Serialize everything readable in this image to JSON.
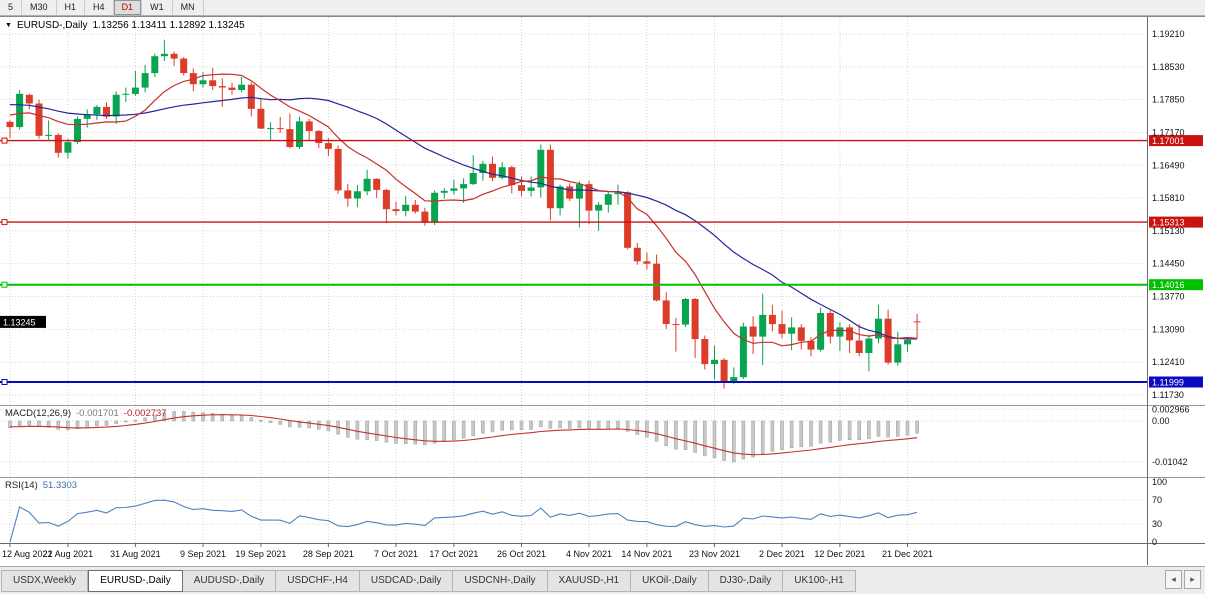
{
  "toolbar": {
    "timeframes": [
      {
        "label": "5",
        "active": false
      },
      {
        "label": "M30",
        "active": false
      },
      {
        "label": "H1",
        "active": false
      },
      {
        "label": "H4",
        "active": false
      },
      {
        "label": "D1",
        "active": true
      },
      {
        "label": "W1",
        "active": false
      },
      {
        "label": "MN",
        "active": false
      }
    ]
  },
  "chart": {
    "type": "candlestick",
    "title": "EURUSD-,Daily",
    "ohlc": "1.13256 1.13411 1.12892 1.13245",
    "price_max": 1.1921,
    "price_min": 1.1173,
    "price_ticks": [
      "1.19210",
      "1.18530",
      "1.17850",
      "1.17170",
      "1.16490",
      "1.15810",
      "1.15130",
      "1.14450",
      "1.13770",
      "1.13090",
      "1.12410",
      "1.11730"
    ],
    "hlines": [
      {
        "price": 1.17001,
        "label": "1.17001",
        "color": "#cc1111",
        "width": 1.4
      },
      {
        "price": 1.15313,
        "label": "1.15313",
        "color": "#cc1111",
        "width": 1.4
      },
      {
        "price": 1.14016,
        "label": "1.14016",
        "color": "#00c000",
        "width": 2
      },
      {
        "price": 1.11999,
        "label": "1.11999",
        "color": "#0a0ac0",
        "width": 2
      }
    ],
    "current_price": {
      "label": "1.13245",
      "color": "#000000"
    },
    "date_ticks": [
      {
        "label": "12 Aug 2021",
        "idx": 0
      },
      {
        "label": "22 Aug 2021",
        "idx": 6
      },
      {
        "label": "31 Aug 2021",
        "idx": 13
      },
      {
        "label": "9 Sep 2021",
        "idx": 20
      },
      {
        "label": "19 Sep 2021",
        "idx": 26
      },
      {
        "label": "28 Sep 2021",
        "idx": 33
      },
      {
        "label": "7 Oct 2021",
        "idx": 40
      },
      {
        "label": "17 Oct 2021",
        "idx": 46
      },
      {
        "label": "26 Oct 2021",
        "idx": 53
      },
      {
        "label": "4 Nov 2021",
        "idx": 60
      },
      {
        "label": "14 Nov 2021",
        "idx": 66
      },
      {
        "label": "23 Nov 2021",
        "idx": 73
      },
      {
        "label": "2 Dec 2021",
        "idx": 80
      },
      {
        "label": "12 Dec 2021",
        "idx": 86
      },
      {
        "label": "21 Dec 2021",
        "idx": 93
      }
    ],
    "candles": [
      [
        1.1739,
        1.1742,
        1.1705,
        1.1728
      ],
      [
        1.1728,
        1.1805,
        1.1723,
        1.1797
      ],
      [
        1.1795,
        1.1797,
        1.1765,
        1.1777
      ],
      [
        1.1777,
        1.1785,
        1.1704,
        1.171
      ],
      [
        1.171,
        1.1742,
        1.17,
        1.1712
      ],
      [
        1.1712,
        1.1715,
        1.1665,
        1.1675
      ],
      [
        1.1675,
        1.1704,
        1.1663,
        1.1697
      ],
      [
        1.1697,
        1.175,
        1.1693,
        1.1745
      ],
      [
        1.1745,
        1.1765,
        1.1727,
        1.1755
      ],
      [
        1.1755,
        1.1774,
        1.1743,
        1.177
      ],
      [
        1.177,
        1.1779,
        1.1745,
        1.175
      ],
      [
        1.175,
        1.1802,
        1.1735,
        1.1795
      ],
      [
        1.1795,
        1.181,
        1.178,
        1.1797
      ],
      [
        1.1797,
        1.1845,
        1.1793,
        1.181
      ],
      [
        1.181,
        1.1857,
        1.18,
        1.184
      ],
      [
        1.184,
        1.188,
        1.1832,
        1.1875
      ],
      [
        1.1875,
        1.1909,
        1.1865,
        1.188
      ],
      [
        1.188,
        1.1885,
        1.1855,
        1.187
      ],
      [
        1.187,
        1.1873,
        1.1835,
        1.184
      ],
      [
        1.184,
        1.185,
        1.1802,
        1.1817
      ],
      [
        1.1817,
        1.1842,
        1.181,
        1.1825
      ],
      [
        1.1825,
        1.1851,
        1.1805,
        1.1813
      ],
      [
        1.1813,
        1.1829,
        1.177,
        1.181
      ],
      [
        1.181,
        1.182,
        1.1795,
        1.1805
      ],
      [
        1.1805,
        1.1832,
        1.18,
        1.1816
      ],
      [
        1.1816,
        1.1821,
        1.175,
        1.1766
      ],
      [
        1.1766,
        1.1788,
        1.1724,
        1.1725
      ],
      [
        1.1725,
        1.1738,
        1.17,
        1.1726
      ],
      [
        1.1726,
        1.1749,
        1.1716,
        1.1724
      ],
      [
        1.1724,
        1.1756,
        1.1684,
        1.1687
      ],
      [
        1.1687,
        1.175,
        1.1683,
        1.174
      ],
      [
        1.174,
        1.1745,
        1.1701,
        1.172
      ],
      [
        1.172,
        1.1722,
        1.1685,
        1.1695
      ],
      [
        1.1695,
        1.1705,
        1.1668,
        1.1683
      ],
      [
        1.1683,
        1.169,
        1.159,
        1.1597
      ],
      [
        1.1597,
        1.161,
        1.1563,
        1.158
      ],
      [
        1.158,
        1.1608,
        1.1562,
        1.1595
      ],
      [
        1.1595,
        1.164,
        1.1587,
        1.1621
      ],
      [
        1.1621,
        1.1622,
        1.1581,
        1.1598
      ],
      [
        1.1598,
        1.16,
        1.1529,
        1.1558
      ],
      [
        1.1558,
        1.1573,
        1.1546,
        1.1554
      ],
      [
        1.1554,
        1.1586,
        1.1543,
        1.1567
      ],
      [
        1.1567,
        1.1577,
        1.1549,
        1.1553
      ],
      [
        1.1553,
        1.1561,
        1.1524,
        1.153
      ],
      [
        1.153,
        1.1597,
        1.1525,
        1.1592
      ],
      [
        1.1592,
        1.1602,
        1.158,
        1.1596
      ],
      [
        1.1596,
        1.1619,
        1.1588,
        1.1601
      ],
      [
        1.1601,
        1.1622,
        1.1571,
        1.161
      ],
      [
        1.161,
        1.167,
        1.1608,
        1.1633
      ],
      [
        1.1633,
        1.1658,
        1.1617,
        1.1652
      ],
      [
        1.1652,
        1.1667,
        1.1616,
        1.1623
      ],
      [
        1.1623,
        1.1656,
        1.162,
        1.1645
      ],
      [
        1.1645,
        1.1648,
        1.1591,
        1.1608
      ],
      [
        1.1608,
        1.1626,
        1.1585,
        1.1596
      ],
      [
        1.1596,
        1.1626,
        1.1584,
        1.1603
      ],
      [
        1.1603,
        1.1692,
        1.1582,
        1.1681
      ],
      [
        1.1681,
        1.1692,
        1.1535,
        1.156
      ],
      [
        1.156,
        1.1609,
        1.1545,
        1.1605
      ],
      [
        1.1605,
        1.1612,
        1.1575,
        1.158
      ],
      [
        1.158,
        1.1616,
        1.152,
        1.161
      ],
      [
        1.161,
        1.1617,
        1.1527,
        1.1555
      ],
      [
        1.1555,
        1.1573,
        1.1513,
        1.1567
      ],
      [
        1.1567,
        1.1596,
        1.1551,
        1.1589
      ],
      [
        1.1589,
        1.1609,
        1.1567,
        1.1593
      ],
      [
        1.1593,
        1.1595,
        1.1475,
        1.1478
      ],
      [
        1.1478,
        1.1488,
        1.1443,
        1.145
      ],
      [
        1.145,
        1.1468,
        1.1433,
        1.1445
      ],
      [
        1.1445,
        1.1464,
        1.1367,
        1.1369
      ],
      [
        1.1369,
        1.1386,
        1.131,
        1.132
      ],
      [
        1.132,
        1.1333,
        1.1263,
        1.1319
      ],
      [
        1.1319,
        1.1374,
        1.1314,
        1.1372
      ],
      [
        1.1372,
        1.1374,
        1.125,
        1.1289
      ],
      [
        1.1289,
        1.1296,
        1.1226,
        1.1237
      ],
      [
        1.1237,
        1.1275,
        1.1205,
        1.1246
      ],
      [
        1.1246,
        1.125,
        1.1186,
        1.12
      ],
      [
        1.12,
        1.123,
        1.1196,
        1.121
      ],
      [
        1.121,
        1.1323,
        1.1206,
        1.1315
      ],
      [
        1.1315,
        1.1336,
        1.1258,
        1.1294
      ],
      [
        1.1294,
        1.1383,
        1.1235,
        1.1339
      ],
      [
        1.1339,
        1.136,
        1.1305,
        1.132
      ],
      [
        1.132,
        1.1348,
        1.129,
        1.13
      ],
      [
        1.13,
        1.1334,
        1.1266,
        1.1313
      ],
      [
        1.1313,
        1.132,
        1.1267,
        1.1285
      ],
      [
        1.1285,
        1.1293,
        1.1253,
        1.1267
      ],
      [
        1.1267,
        1.1354,
        1.1263,
        1.1343
      ],
      [
        1.1343,
        1.1348,
        1.128,
        1.1294
      ],
      [
        1.1294,
        1.1324,
        1.1264,
        1.1313
      ],
      [
        1.1313,
        1.1319,
        1.126,
        1.1286
      ],
      [
        1.1286,
        1.132,
        1.1253,
        1.126
      ],
      [
        1.126,
        1.1298,
        1.1222,
        1.129
      ],
      [
        1.129,
        1.136,
        1.128,
        1.1331
      ],
      [
        1.1331,
        1.135,
        1.1236,
        1.124
      ],
      [
        1.124,
        1.1304,
        1.1234,
        1.1278
      ],
      [
        1.1278,
        1.1293,
        1.1262,
        1.1287
      ],
      [
        1.13256,
        1.13411,
        1.12892,
        1.13245
      ]
    ]
  },
  "macd": {
    "name": "MACD(12,26,9)",
    "main_value": "-0.001701",
    "signal_value": "-0.002737",
    "ticks": [
      {
        "label": "0.002966",
        "value": 0.002966
      },
      {
        "label": "0.00",
        "value": 0
      },
      {
        "label": "-0.01042",
        "value": -0.01042
      }
    ]
  },
  "rsi": {
    "name": "RSI(14)",
    "value": "51.3303",
    "ticks": [
      {
        "label": "100",
        "value": 100
      },
      {
        "label": "70",
        "value": 70
      },
      {
        "label": "30",
        "value": 30
      },
      {
        "label": "0",
        "value": 0
      }
    ]
  },
  "tabs": [
    {
      "label": "USDX,Weekly",
      "active": false
    },
    {
      "label": "EURUSD-,Daily",
      "active": true
    },
    {
      "label": "AUDUSD-,Daily",
      "active": false
    },
    {
      "label": "USDCHF-,H4",
      "active": false
    },
    {
      "label": "USDCAD-,Daily",
      "active": false
    },
    {
      "label": "USDCNH-,Daily",
      "active": false
    },
    {
      "label": "XAUUSD-,H1",
      "active": false
    },
    {
      "label": "UKOil-,Daily",
      "active": false
    },
    {
      "label": "DJ30-,Daily",
      "active": false
    },
    {
      "label": "UK100-,H1",
      "active": false
    }
  ],
  "colors": {
    "up": "#09a44f",
    "down": "#dc3c2a",
    "ma_fast": "#c62f2f",
    "ma_slow": "#26269c",
    "grid": "#d6d6d6",
    "rsi_line": "#4f81bd",
    "macd_bar": "#c8c8c8",
    "macd_bar_edge": "#9b9b9b",
    "macd_signal": "#c62f2f",
    "axis_text": "#111111"
  }
}
